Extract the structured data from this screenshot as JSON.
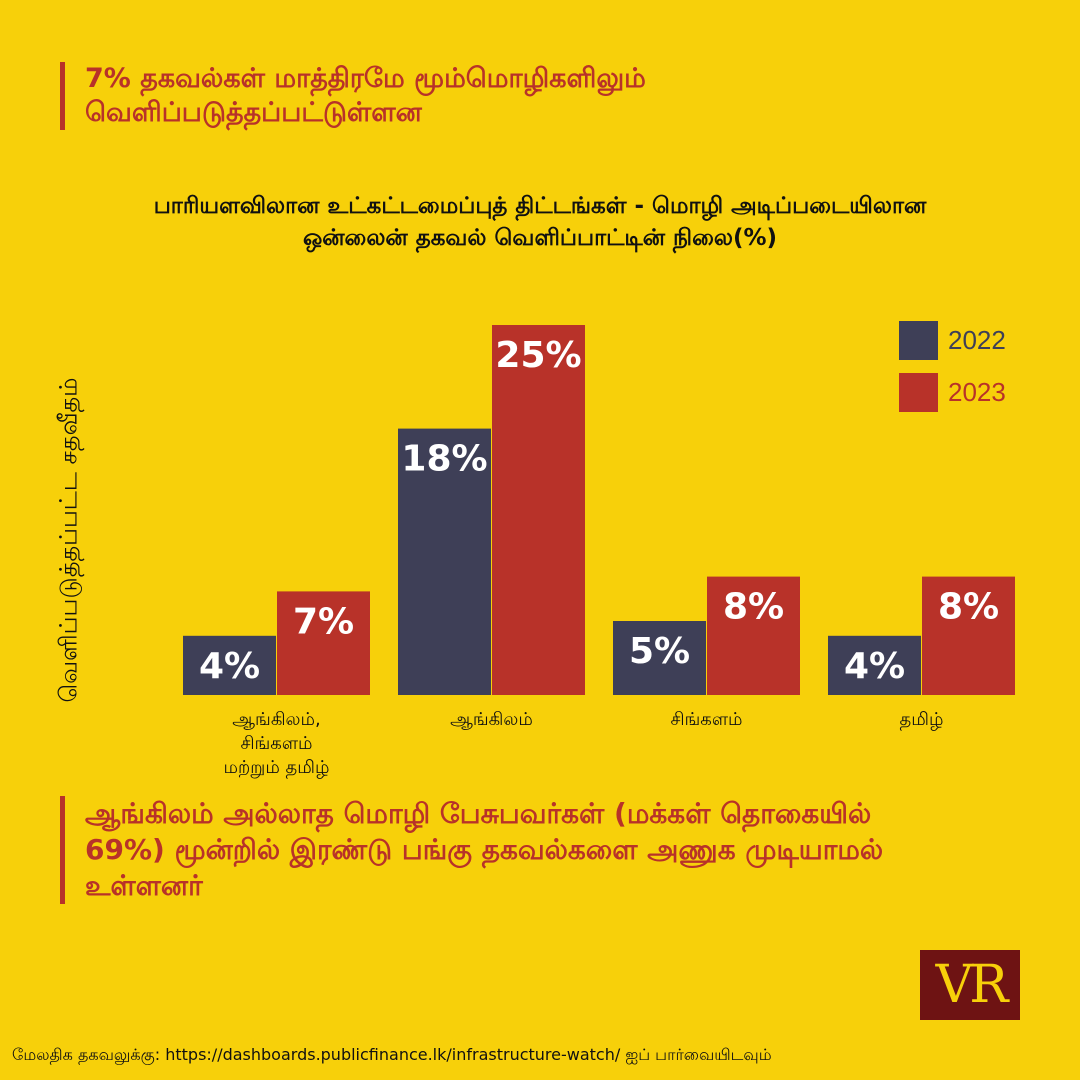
{
  "headline": "7% தகவல்கள் மாத்திரமே மூம்மொழிகளிலும் வெளிப்படுத்தப்பட்டுள்ளன",
  "chart_data": {
    "type": "bar",
    "title": "பாரியளவிலான உட்கட்டமைப்புத் திட்டங்கள் - மொழி அடிப்படையிலான ஒன்லைன் தகவல் வெளிப்பாட்டின் நிலை(%)",
    "ylabel": "வெளிப்படுத்தப்பட்ட சதவீதம்",
    "xlabel": "",
    "categories": [
      "ஆங்கிலம், சிங்களம் மற்றும் தமிழ்",
      "ஆங்கிலம்",
      "சிங்களம்",
      "தமிழ்"
    ],
    "series": [
      {
        "name": "2022",
        "values": [
          4,
          18,
          5,
          4
        ],
        "labels": [
          "4%",
          "18%",
          "5%",
          "4%"
        ],
        "color": "#3E3F57"
      },
      {
        "name": "2023",
        "values": [
          7,
          25,
          8,
          8
        ],
        "labels": [
          "7%",
          "25%",
          "8%",
          "8%"
        ],
        "color": "#B83229"
      }
    ],
    "ylim": [
      0,
      25
    ],
    "grid": false,
    "legend_position": "top-right"
  },
  "category_labels": [
    [
      "ஆங்கிலம்,",
      "சிங்களம்",
      "மற்றும் தமிழ்"
    ],
    [
      "ஆங்கிலம்"
    ],
    [
      "சிங்களம்"
    ],
    [
      "தமிழ்"
    ]
  ],
  "footnote": "ஆங்கிலம் அல்லாத மொழி பேசுபவர்கள் (மக்கள் தொகையில் 69%) மூன்றில் இரண்டு பங்கு தகவல்களை அணுக முடியாமல் உள்ளனர்",
  "logo": "VR",
  "source": "மேலதிக தகவலுக்கு: https://dashboards.publicfinance.lk/infrastructure-watch/ ஐப் பார்வையிடவும்",
  "colors": {
    "background": "#F7D00A",
    "accent": "#B83229",
    "dark": "#3E3F57",
    "logo_bg": "#6E1313"
  }
}
